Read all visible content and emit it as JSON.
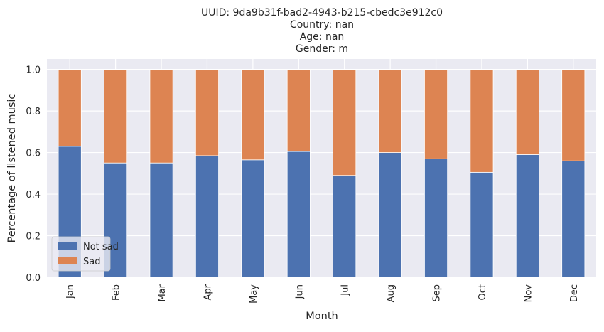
{
  "chart_data": {
    "type": "bar",
    "stacked": true,
    "title_lines": [
      "UUID: 9da9b31f-bad2-4943-b215-cbedc3e912c0",
      "Country: nan",
      "Age: nan",
      "Gender: m"
    ],
    "xlabel": "Month",
    "ylabel": "Percentage of listened music",
    "ylim": [
      0,
      1.05
    ],
    "yticks": [
      "0.0",
      "0.2",
      "0.4",
      "0.6",
      "0.8",
      "1.0"
    ],
    "categories": [
      "Jan",
      "Feb",
      "Mar",
      "Apr",
      "May",
      "Jun",
      "Jul",
      "Aug",
      "Sep",
      "Oct",
      "Nov",
      "Dec"
    ],
    "series": [
      {
        "name": "Not sad",
        "color": "#4c72b0",
        "values": [
          0.63,
          0.55,
          0.55,
          0.585,
          0.565,
          0.605,
          0.49,
          0.6,
          0.57,
          0.505,
          0.59,
          0.56
        ]
      },
      {
        "name": "Sad",
        "color": "#dd8452",
        "values": [
          0.37,
          0.45,
          0.45,
          0.415,
          0.435,
          0.395,
          0.51,
          0.4,
          0.43,
          0.495,
          0.41,
          0.44
        ]
      }
    ],
    "grid": true,
    "legend_position": "lower-left",
    "background_color": "#eaeaf2"
  }
}
